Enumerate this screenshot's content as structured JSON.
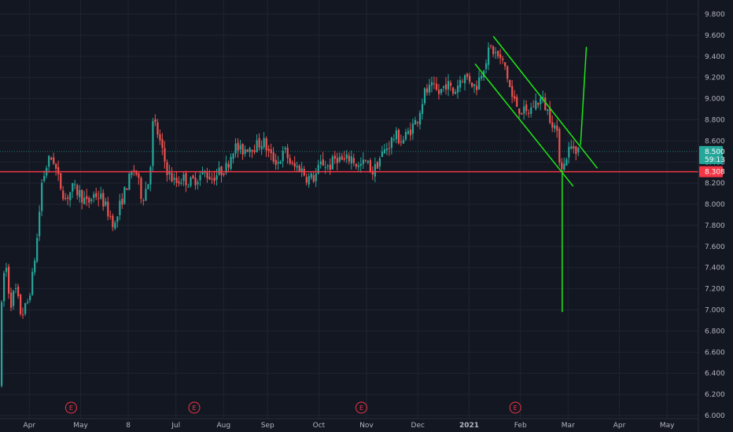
{
  "chart_data": {
    "type": "candlestick",
    "title": "",
    "xlabel": "",
    "ylabel": "",
    "ylim": [
      6.0,
      9.9
    ],
    "grid": true,
    "price_ticks": [
      "9.800",
      "9.600",
      "9.400",
      "9.200",
      "9.000",
      "8.800",
      "8.600",
      "8.400",
      "8.200",
      "8.000",
      "7.800",
      "7.600",
      "7.400",
      "7.200",
      "7.000",
      "6.800",
      "6.600",
      "6.400",
      "6.200",
      "6.000"
    ],
    "month_labels": [
      {
        "label": "Apr",
        "t": 0.04
      },
      {
        "label": "May",
        "t": 0.11
      },
      {
        "label": "8",
        "t": 0.175
      },
      {
        "label": "Jul",
        "t": 0.24
      },
      {
        "label": "Aug",
        "t": 0.305
      },
      {
        "label": "Sep",
        "t": 0.365
      },
      {
        "label": "Oct",
        "t": 0.435
      },
      {
        "label": "Nov",
        "t": 0.5
      },
      {
        "label": "Dec",
        "t": 0.57
      },
      {
        "label": "2021",
        "t": 0.64
      },
      {
        "label": "Feb",
        "t": 0.71
      },
      {
        "label": "Mar",
        "t": 0.775
      },
      {
        "label": "Apr",
        "t": 0.845
      },
      {
        "label": "May",
        "t": 0.91
      }
    ],
    "earnings_markers": [
      {
        "label": "E",
        "t": 0.097
      },
      {
        "label": "E",
        "t": 0.265
      },
      {
        "label": "E",
        "t": 0.493
      },
      {
        "label": "E",
        "t": 0.703
      }
    ],
    "last_price": {
      "value": 8.5,
      "label": "8.500",
      "countdown": "59:13"
    },
    "horizontal_line": {
      "value": 8.308,
      "label": "8.308",
      "color": "#f23645"
    },
    "drawings": {
      "channel_upper": {
        "start": {
          "t": 0.673,
          "price": 9.59
        },
        "end": {
          "t": 0.815,
          "price": 8.34
        }
      },
      "channel_lower": {
        "start": {
          "t": 0.648,
          "price": 9.33
        },
        "end": {
          "t": 0.782,
          "price": 8.17
        }
      },
      "projection_down": {
        "start": {
          "t": 0.767,
          "price": 8.32
        },
        "end": {
          "t": 0.767,
          "price": 6.98
        }
      },
      "projection_up": {
        "start": {
          "t": 0.792,
          "price": 8.56
        },
        "end": {
          "t": 0.8,
          "price": 9.49
        }
      },
      "color": "#1ee816"
    },
    "anchors": [
      [
        0.0,
        6.3
      ],
      [
        0.003,
        7.0
      ],
      [
        0.008,
        7.5
      ],
      [
        0.015,
        7.05
      ],
      [
        0.022,
        7.2
      ],
      [
        0.03,
        6.95
      ],
      [
        0.038,
        7.05
      ],
      [
        0.045,
        7.3
      ],
      [
        0.052,
        7.7
      ],
      [
        0.058,
        8.2
      ],
      [
        0.066,
        8.4
      ],
      [
        0.073,
        8.45
      ],
      [
        0.08,
        8.25
      ],
      [
        0.09,
        8.05
      ],
      [
        0.1,
        8.15
      ],
      [
        0.11,
        8.1
      ],
      [
        0.12,
        8.0
      ],
      [
        0.13,
        8.1
      ],
      [
        0.14,
        8.05
      ],
      [
        0.15,
        7.9
      ],
      [
        0.158,
        7.8
      ],
      [
        0.165,
        8.0
      ],
      [
        0.175,
        8.2
      ],
      [
        0.185,
        8.35
      ],
      [
        0.195,
        8.05
      ],
      [
        0.205,
        8.25
      ],
      [
        0.21,
        8.8
      ],
      [
        0.215,
        8.7
      ],
      [
        0.222,
        8.5
      ],
      [
        0.23,
        8.3
      ],
      [
        0.24,
        8.2
      ],
      [
        0.25,
        8.25
      ],
      [
        0.26,
        8.2
      ],
      [
        0.27,
        8.25
      ],
      [
        0.28,
        8.3
      ],
      [
        0.29,
        8.25
      ],
      [
        0.3,
        8.3
      ],
      [
        0.31,
        8.35
      ],
      [
        0.32,
        8.55
      ],
      [
        0.33,
        8.5
      ],
      [
        0.34,
        8.55
      ],
      [
        0.35,
        8.55
      ],
      [
        0.36,
        8.6
      ],
      [
        0.37,
        8.45
      ],
      [
        0.38,
        8.4
      ],
      [
        0.39,
        8.5
      ],
      [
        0.4,
        8.35
      ],
      [
        0.41,
        8.35
      ],
      [
        0.42,
        8.25
      ],
      [
        0.43,
        8.25
      ],
      [
        0.44,
        8.4
      ],
      [
        0.45,
        8.35
      ],
      [
        0.46,
        8.45
      ],
      [
        0.47,
        8.4
      ],
      [
        0.48,
        8.45
      ],
      [
        0.49,
        8.35
      ],
      [
        0.5,
        8.4
      ],
      [
        0.51,
        8.3
      ],
      [
        0.52,
        8.45
      ],
      [
        0.53,
        8.55
      ],
      [
        0.54,
        8.65
      ],
      [
        0.55,
        8.6
      ],
      [
        0.56,
        8.7
      ],
      [
        0.57,
        8.8
      ],
      [
        0.58,
        9.05
      ],
      [
        0.59,
        9.1
      ],
      [
        0.6,
        9.05
      ],
      [
        0.61,
        9.15
      ],
      [
        0.62,
        9.05
      ],
      [
        0.63,
        9.2
      ],
      [
        0.64,
        9.2
      ],
      [
        0.65,
        9.1
      ],
      [
        0.66,
        9.3
      ],
      [
        0.67,
        9.48
      ],
      [
        0.68,
        9.4
      ],
      [
        0.69,
        9.3
      ],
      [
        0.7,
        9.0
      ],
      [
        0.71,
        8.9
      ],
      [
        0.72,
        8.85
      ],
      [
        0.73,
        8.95
      ],
      [
        0.74,
        9.0
      ],
      [
        0.75,
        8.85
      ],
      [
        0.76,
        8.7
      ],
      [
        0.765,
        8.4
      ],
      [
        0.77,
        8.35
      ],
      [
        0.775,
        8.5
      ],
      [
        0.782,
        8.55
      ],
      [
        0.79,
        8.52
      ]
    ],
    "candle_count": 245,
    "colors": {
      "up": "#26a69a",
      "down": "#ef5350",
      "grid": "#1f2433",
      "background": "#131722",
      "price_badge": "#26a69a"
    }
  }
}
